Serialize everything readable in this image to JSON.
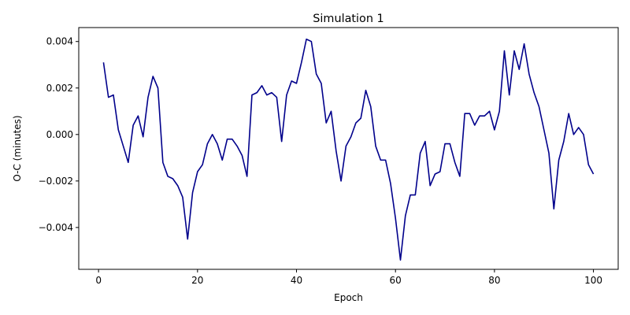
{
  "chart_data": {
    "type": "line",
    "title": "Simulation 1",
    "xlabel": "Epoch",
    "ylabel": "O-C (minutes)",
    "xlim": [
      -4,
      105
    ],
    "ylim": [
      -0.0058,
      0.0046
    ],
    "xticks": [
      0,
      20,
      40,
      60,
      80,
      100
    ],
    "yticks": [
      -0.004,
      -0.002,
      0.0,
      0.002,
      0.004
    ],
    "xtick_labels": [
      "0",
      "20",
      "40",
      "60",
      "80",
      "100"
    ],
    "ytick_labels": [
      "−0.004",
      "−0.002",
      "0.000",
      "0.002",
      "0.004"
    ],
    "grid": false,
    "line_color": "#00008b",
    "series": [
      {
        "x": [
          1,
          2,
          3,
          4,
          5,
          6,
          7,
          8,
          9,
          10,
          11,
          12,
          13,
          14,
          15,
          16,
          17,
          18,
          19,
          20,
          21,
          22,
          23,
          24,
          25,
          26,
          27,
          28,
          29,
          30,
          31,
          32,
          33,
          34,
          35,
          36,
          37,
          38,
          39,
          40,
          41,
          42,
          43,
          44,
          45,
          46,
          47,
          48,
          49,
          50,
          51,
          52,
          53,
          54,
          55,
          56,
          57,
          58,
          59,
          60,
          61,
          62,
          63,
          64,
          65,
          66,
          67,
          68,
          69,
          70,
          71,
          72,
          73,
          74,
          75,
          76,
          77,
          78,
          79,
          80,
          81,
          82,
          83,
          84,
          85,
          86,
          87,
          88,
          89,
          90,
          91,
          92,
          93,
          94,
          95,
          96,
          97,
          98,
          99,
          100
        ],
        "y": [
          0.0031,
          0.0016,
          0.0017,
          0.0002,
          -0.0005,
          -0.0012,
          0.0004,
          0.0008,
          -0.0001,
          0.0016,
          0.0025,
          0.002,
          -0.0012,
          -0.0018,
          -0.0019,
          -0.0022,
          -0.0027,
          -0.0045,
          -0.0025,
          -0.0016,
          -0.0013,
          -0.0004,
          0.0,
          -0.0004,
          -0.0011,
          -0.0002,
          -0.0002,
          -0.0005,
          -0.0009,
          -0.0018,
          0.0017,
          0.0018,
          0.0021,
          0.0017,
          0.0018,
          0.0016,
          -0.0003,
          0.0017,
          0.0023,
          0.0022,
          0.0031,
          0.0041,
          0.004,
          0.0026,
          0.0022,
          0.0005,
          0.001,
          -0.0007,
          -0.002,
          -0.0005,
          -0.0001,
          0.0005,
          0.0007,
          0.0019,
          0.0012,
          -0.0005,
          -0.0011,
          -0.0011,
          -0.0021,
          -0.0036,
          -0.0054,
          -0.0035,
          -0.0026,
          -0.0026,
          -0.0008,
          -0.0003,
          -0.0022,
          -0.0017,
          -0.0016,
          -0.0004,
          -0.0004,
          -0.0012,
          -0.0018,
          0.0009,
          0.0009,
          0.0004,
          0.0008,
          0.0008,
          0.001,
          0.0002,
          0.001,
          0.0036,
          0.0017,
          0.0036,
          0.0028,
          0.0039,
          0.0026,
          0.0018,
          0.0012,
          0.0002,
          -0.0008,
          -0.0032,
          -0.0011,
          -0.0003,
          0.0009,
          0.0,
          0.0003,
          0.0,
          -0.0013,
          -0.0017
        ]
      }
    ]
  }
}
